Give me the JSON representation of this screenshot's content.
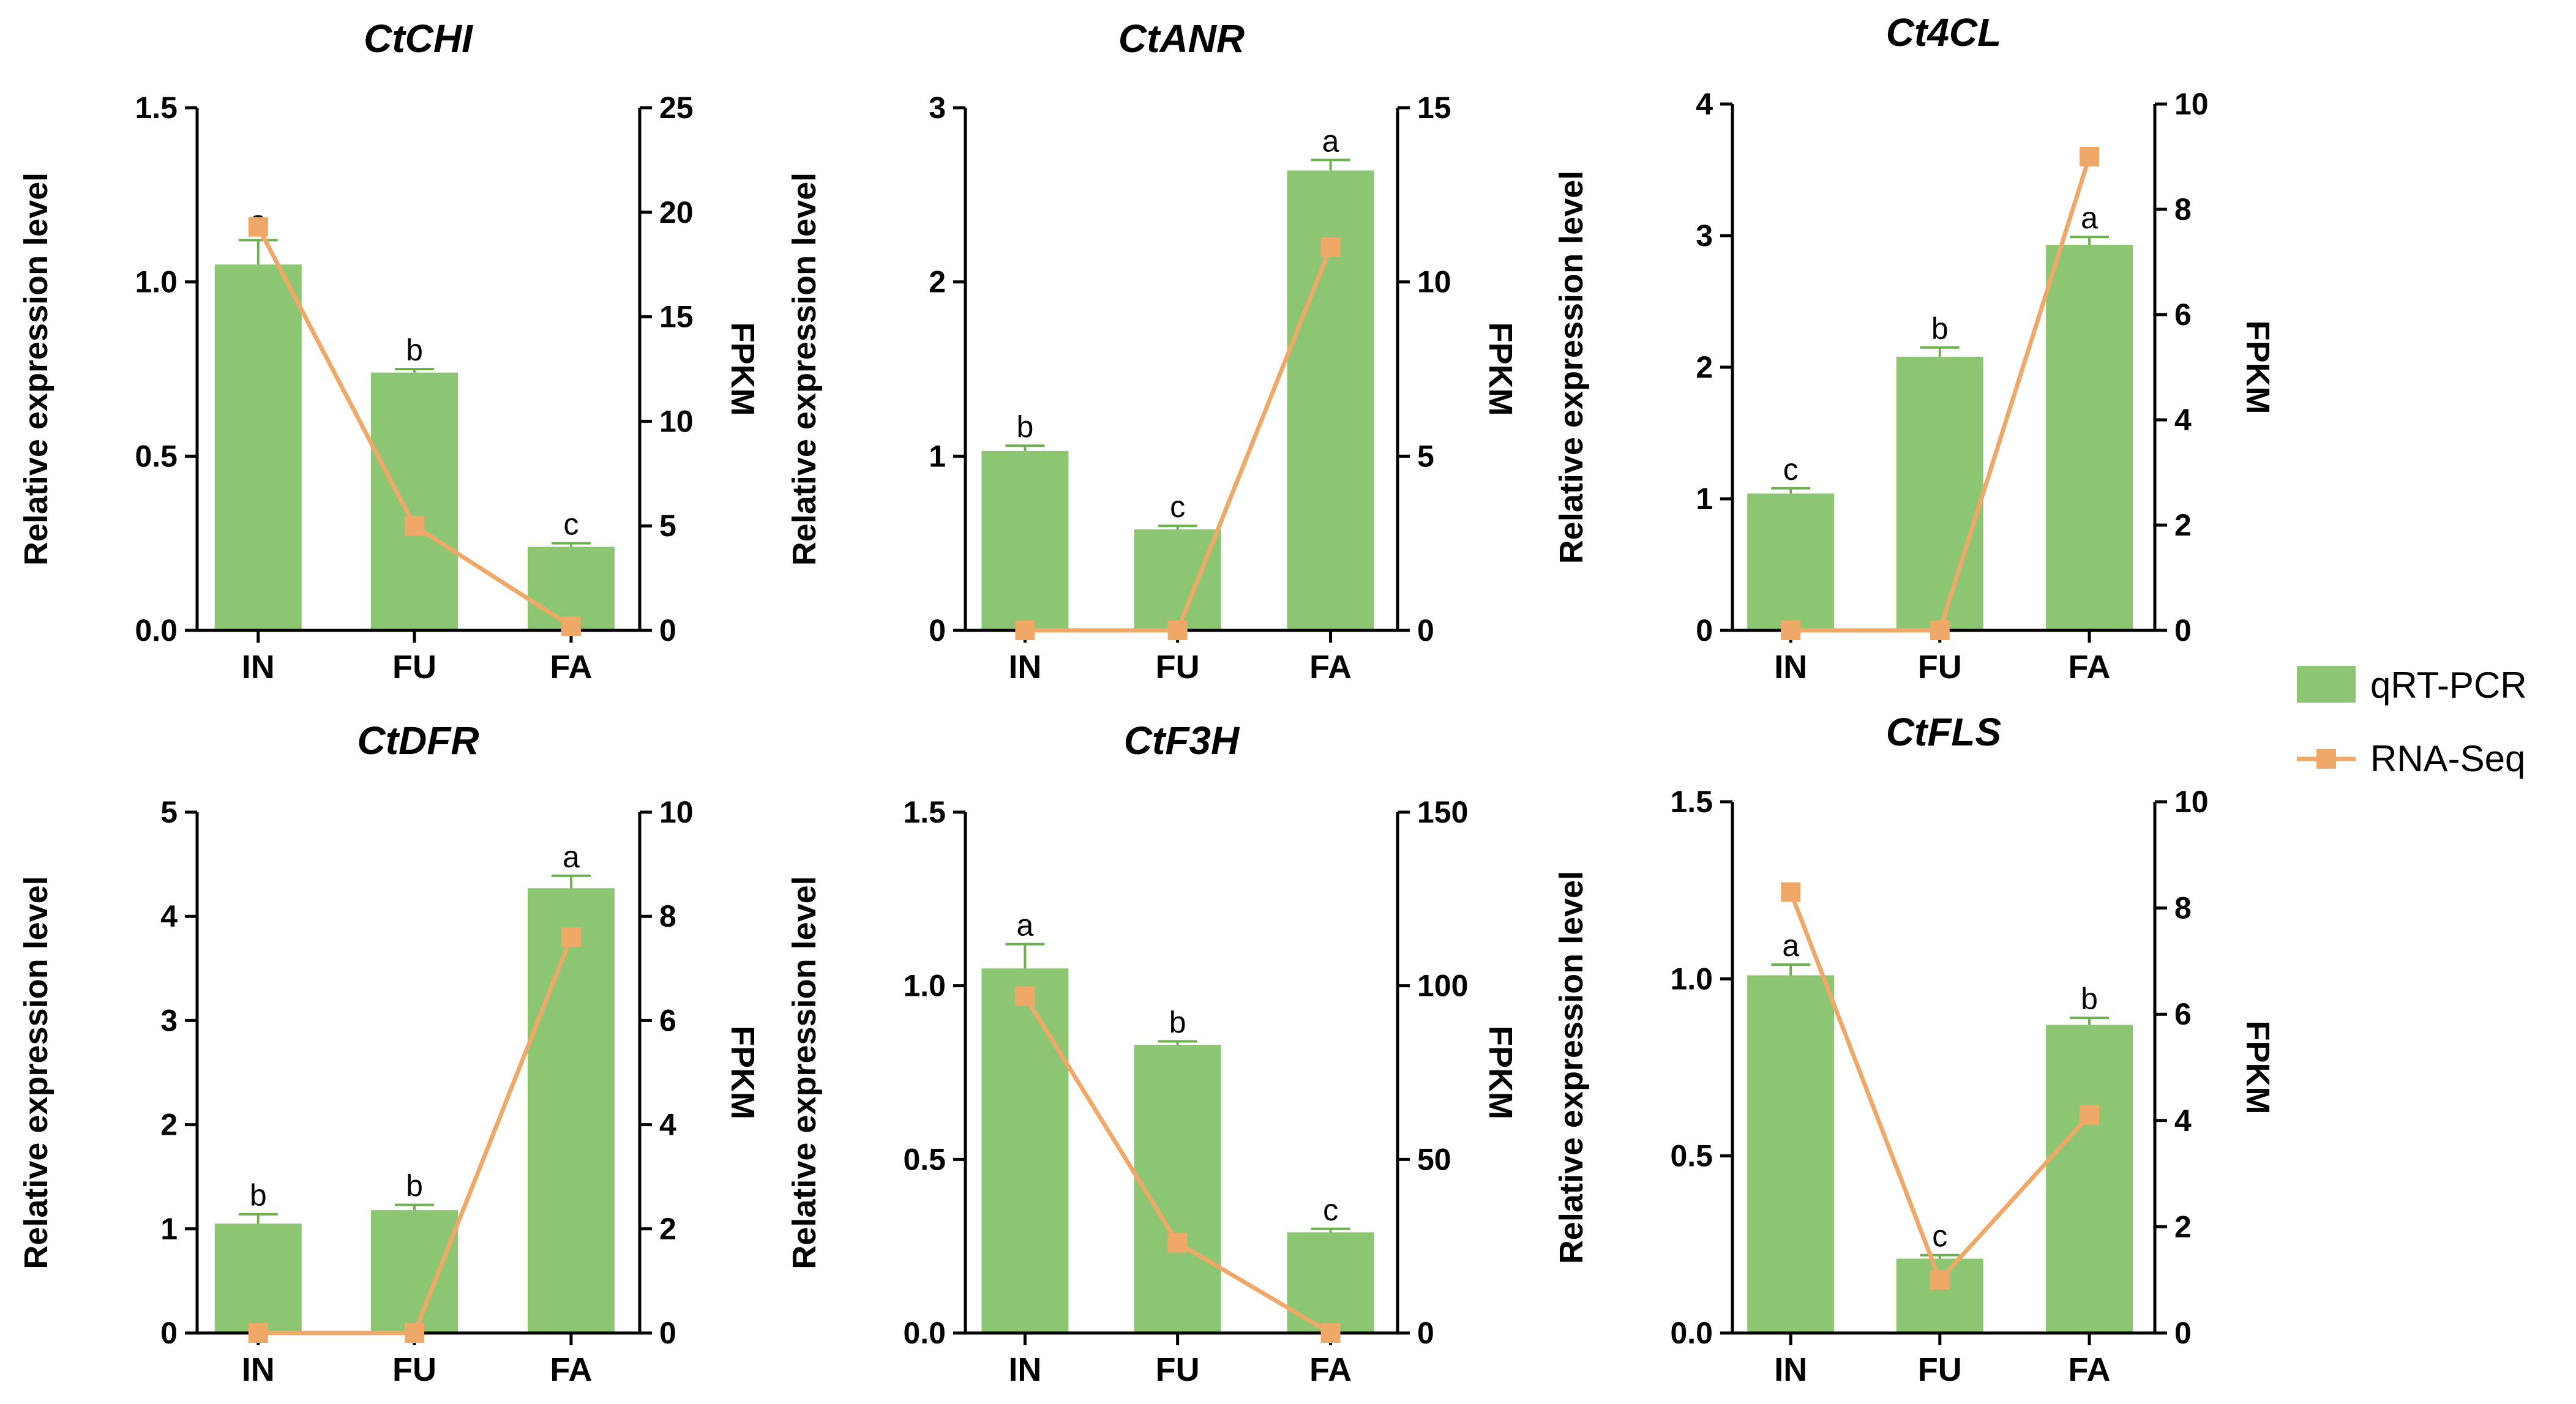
{
  "colors": {
    "bar": "#8cc673",
    "bar_error": "#6db04f",
    "line": "#f0a868",
    "axis": "#000000"
  },
  "legend": {
    "bar_label": "qRT-PCR",
    "line_label": "RNA-Seq"
  },
  "chart_data": [
    {
      "type": "bar+line",
      "title": "CtCHI",
      "ylabel": "Relative expression level",
      "y2label": "FPKM",
      "categories": [
        "IN",
        "FU",
        "FA"
      ],
      "ylim": [
        0,
        1.5
      ],
      "yticks": [
        0.0,
        0.5,
        1.0,
        1.5
      ],
      "ytick_labels": [
        "0.0",
        "0.5",
        "1.0",
        "1.5"
      ],
      "y2lim": [
        0,
        25
      ],
      "y2ticks": [
        0,
        5,
        10,
        15,
        20,
        25
      ],
      "y2tick_labels": [
        "0",
        "5",
        "10",
        "15",
        "20",
        "25"
      ],
      "series": [
        {
          "name": "qRT-PCR",
          "kind": "bar",
          "values": [
            1.05,
            0.74,
            0.24
          ],
          "errors": [
            0.07,
            0.01,
            0.01
          ],
          "letters": [
            "a",
            "b",
            "c"
          ]
        },
        {
          "name": "RNA-Seq",
          "kind": "line",
          "axis": "right",
          "values": [
            19.3,
            5.0,
            0.2
          ]
        }
      ]
    },
    {
      "type": "bar+line",
      "title": "CtANR",
      "ylabel": "Relative expression level",
      "y2label": "FPKM",
      "categories": [
        "IN",
        "FU",
        "FA"
      ],
      "ylim": [
        0,
        3
      ],
      "yticks": [
        0,
        1,
        2,
        3
      ],
      "ytick_labels": [
        "0",
        "1",
        "2",
        "3"
      ],
      "y2lim": [
        0,
        15
      ],
      "y2ticks": [
        0,
        5,
        10,
        15
      ],
      "y2tick_labels": [
        "0",
        "5",
        "10",
        "15"
      ],
      "series": [
        {
          "name": "qRT-PCR",
          "kind": "bar",
          "values": [
            1.03,
            0.58,
            2.64
          ],
          "errors": [
            0.03,
            0.02,
            0.06
          ],
          "letters": [
            "b",
            "c",
            "a"
          ]
        },
        {
          "name": "RNA-Seq",
          "kind": "line",
          "axis": "right",
          "values": [
            0.0,
            0.0,
            11.0
          ]
        }
      ]
    },
    {
      "type": "bar+line",
      "title": "Ct4CL",
      "ylabel": "Relative expression level",
      "y2label": "FPKM",
      "categories": [
        "IN",
        "FU",
        "FA"
      ],
      "ylim": [
        0,
        4
      ],
      "yticks": [
        0,
        1,
        2,
        3,
        4
      ],
      "ytick_labels": [
        "0",
        "1",
        "2",
        "3",
        "4"
      ],
      "y2lim": [
        0,
        10
      ],
      "y2ticks": [
        0,
        2,
        4,
        6,
        8,
        10
      ],
      "y2tick_labels": [
        "0",
        "2",
        "4",
        "6",
        "8",
        "10"
      ],
      "series": [
        {
          "name": "qRT-PCR",
          "kind": "bar",
          "values": [
            1.04,
            2.08,
            2.93
          ],
          "errors": [
            0.04,
            0.07,
            0.06
          ],
          "letters": [
            "c",
            "b",
            "a"
          ]
        },
        {
          "name": "RNA-Seq",
          "kind": "line",
          "axis": "right",
          "values": [
            0.0,
            0.0,
            9.0
          ]
        }
      ]
    },
    {
      "type": "bar+line",
      "title": "CtDFR",
      "ylabel": "Relative expression level",
      "y2label": "FPKM",
      "categories": [
        "IN",
        "FU",
        "FA"
      ],
      "ylim": [
        0,
        5
      ],
      "yticks": [
        0,
        1,
        2,
        3,
        4,
        5
      ],
      "ytick_labels": [
        "0",
        "1",
        "2",
        "3",
        "4",
        "5"
      ],
      "y2lim": [
        0,
        10
      ],
      "y2ticks": [
        0,
        2,
        4,
        6,
        8,
        10
      ],
      "y2tick_labels": [
        "0",
        "2",
        "4",
        "6",
        "8",
        "10"
      ],
      "series": [
        {
          "name": "qRT-PCR",
          "kind": "bar",
          "values": [
            1.05,
            1.18,
            4.27
          ],
          "errors": [
            0.09,
            0.05,
            0.12
          ],
          "letters": [
            "b",
            "b",
            "a"
          ]
        },
        {
          "name": "RNA-Seq",
          "kind": "line",
          "axis": "right",
          "values": [
            0.0,
            0.0,
            7.6
          ]
        }
      ]
    },
    {
      "type": "bar+line",
      "title": "CtF3H",
      "ylabel": "Relative expression level",
      "y2label": "FPKM",
      "categories": [
        "IN",
        "FU",
        "FA"
      ],
      "ylim": [
        0,
        1.5
      ],
      "yticks": [
        0.0,
        0.5,
        1.0,
        1.5
      ],
      "ytick_labels": [
        "0.0",
        "0.5",
        "1.0",
        "1.5"
      ],
      "y2lim": [
        0,
        150
      ],
      "y2ticks": [
        0,
        50,
        100,
        150
      ],
      "y2tick_labels": [
        "0",
        "50",
        "100",
        "150"
      ],
      "series": [
        {
          "name": "qRT-PCR",
          "kind": "bar",
          "values": [
            1.05,
            0.83,
            0.29
          ],
          "errors": [
            0.07,
            0.01,
            0.01
          ],
          "letters": [
            "a",
            "b",
            "c"
          ]
        },
        {
          "name": "RNA-Seq",
          "kind": "line",
          "axis": "right",
          "values": [
            97,
            26,
            0
          ]
        }
      ]
    },
    {
      "type": "bar+line",
      "title": "CtFLS",
      "ylabel": "Relative expression level",
      "y2label": "FPKM",
      "categories": [
        "IN",
        "FU",
        "FA"
      ],
      "ylim": [
        0,
        1.5
      ],
      "yticks": [
        0.0,
        0.5,
        1.0,
        1.5
      ],
      "ytick_labels": [
        "0.0",
        "0.5",
        "1.0",
        "1.5"
      ],
      "y2lim": [
        0,
        10
      ],
      "y2ticks": [
        0,
        2,
        4,
        6,
        8,
        10
      ],
      "y2tick_labels": [
        "0",
        "2",
        "4",
        "6",
        "8",
        "10"
      ],
      "series": [
        {
          "name": "qRT-PCR",
          "kind": "bar",
          "values": [
            1.01,
            0.21,
            0.87
          ],
          "errors": [
            0.03,
            0.01,
            0.02
          ],
          "letters": [
            "a",
            "c",
            "b"
          ]
        },
        {
          "name": "RNA-Seq",
          "kind": "line",
          "axis": "right",
          "values": [
            8.3,
            1.0,
            4.1
          ]
        }
      ]
    }
  ]
}
